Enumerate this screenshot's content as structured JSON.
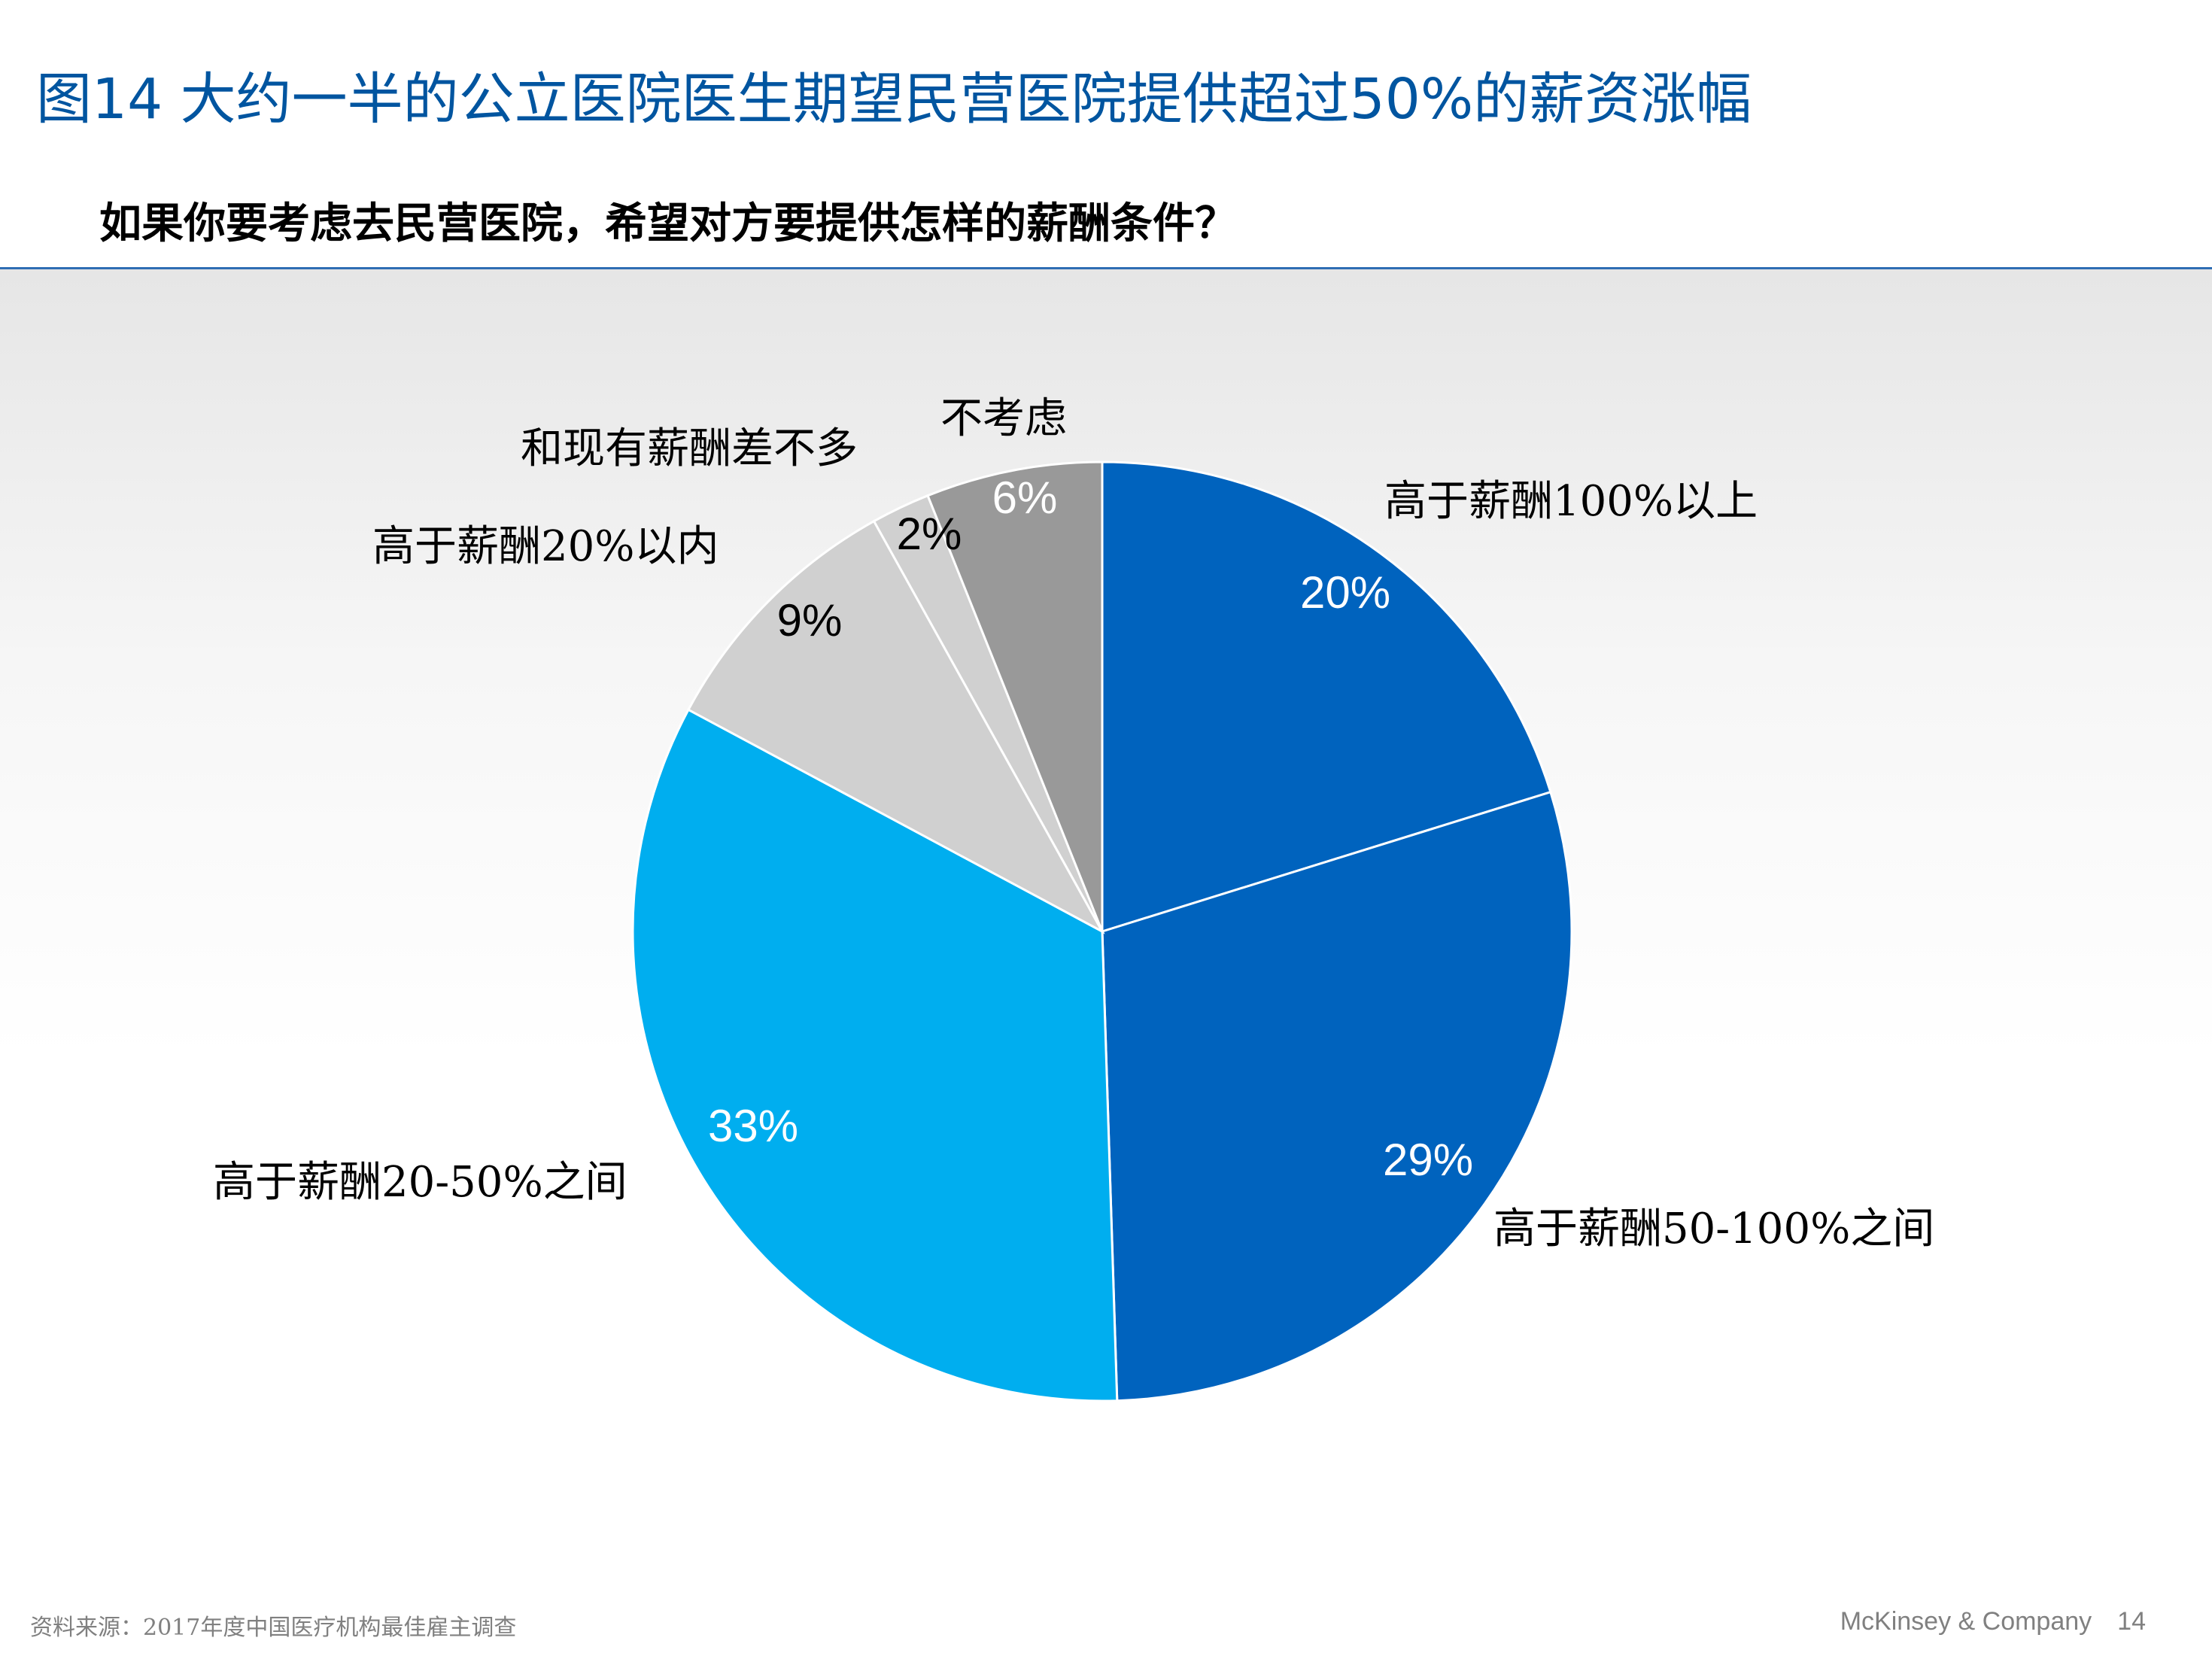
{
  "header": {
    "title": "图14 大约一半的公立医院医生期望民营医院提供超过50%的薪资涨幅",
    "subtitle": "如果你要考虑去民营医院，希望对方要提供怎样的薪酬条件？"
  },
  "chart_data": {
    "type": "pie",
    "start": "12 o'clock, clockwise",
    "slices": [
      {
        "label": "高于薪酬100%以上",
        "value": 20,
        "value_label": "20%",
        "color": "#0063be"
      },
      {
        "label": "高于薪酬50-100%之间",
        "value": 29,
        "value_label": "29%",
        "color": "#0063be"
      },
      {
        "label": "高于薪酬20-50%之间",
        "value": 33,
        "value_label": "33%",
        "color": "#00aeef"
      },
      {
        "label": "高于薪酬20%以内",
        "value": 9,
        "value_label": "9%",
        "color": "#d0d0d0"
      },
      {
        "label": "和现有薪酬差不多",
        "value": 2,
        "value_label": "2%",
        "color": "#d0d0d0"
      },
      {
        "label": "不考虑",
        "value": 6,
        "value_label": "6%",
        "color": "#999999"
      }
    ]
  },
  "footer": {
    "source": "资料来源：2017年度中国医疗机构最佳雇主调查",
    "brand": "McKinsey & Company",
    "page": "14"
  }
}
